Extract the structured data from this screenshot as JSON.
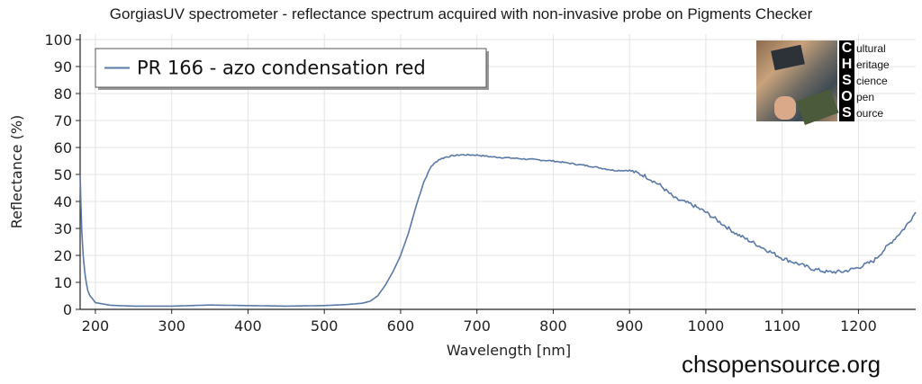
{
  "title": "GorgiasUV spectrometer - reflectance spectrum acquired with non-invasive probe on Pigments Checker",
  "website": "chsopensource.org",
  "logo": {
    "letters": [
      "C",
      "H",
      "S",
      "O",
      "S"
    ],
    "words": [
      "ultural",
      "eritage",
      "cience",
      "pen",
      "ource"
    ]
  },
  "chart_data": {
    "type": "line",
    "xlabel": "Wavelength [nm]",
    "ylabel": "Reflectance (%)",
    "xlim": [
      180,
      1275
    ],
    "ylim": [
      0,
      102
    ],
    "xticks": [
      200,
      300,
      400,
      500,
      600,
      700,
      800,
      900,
      1000,
      1100,
      1200
    ],
    "yticks": [
      0,
      10,
      20,
      30,
      40,
      50,
      60,
      70,
      80,
      90,
      100
    ],
    "legend_position": "top-left",
    "line_color": "#5a79a6",
    "series": [
      {
        "name": "PR 166 - azo condensation red",
        "x": [
          180,
          182,
          184,
          186,
          188,
          190,
          193,
          196,
          200,
          210,
          220,
          250,
          300,
          350,
          400,
          450,
          500,
          530,
          550,
          560,
          570,
          580,
          590,
          600,
          610,
          620,
          630,
          640,
          650,
          660,
          670,
          680,
          700,
          720,
          750,
          800,
          850,
          880,
          900,
          920,
          940,
          960,
          980,
          1000,
          1020,
          1040,
          1060,
          1080,
          1100,
          1120,
          1140,
          1160,
          1180,
          1200,
          1220,
          1240,
          1260,
          1275
        ],
        "y": [
          50,
          30,
          20,
          14,
          10,
          7,
          5,
          4,
          2.5,
          2,
          1.5,
          1.2,
          1.2,
          1.6,
          1.4,
          1.2,
          1.4,
          1.8,
          2.3,
          3,
          5,
          9,
          14,
          20,
          28,
          38,
          47,
          53,
          55.5,
          56.5,
          57,
          57.3,
          57.2,
          56.5,
          56,
          55,
          53,
          51.5,
          51.5,
          49.5,
          46,
          41,
          39,
          36,
          32,
          28,
          25,
          22,
          19,
          17,
          15,
          13.8,
          14,
          15.5,
          18,
          24,
          30,
          36
        ]
      }
    ]
  }
}
